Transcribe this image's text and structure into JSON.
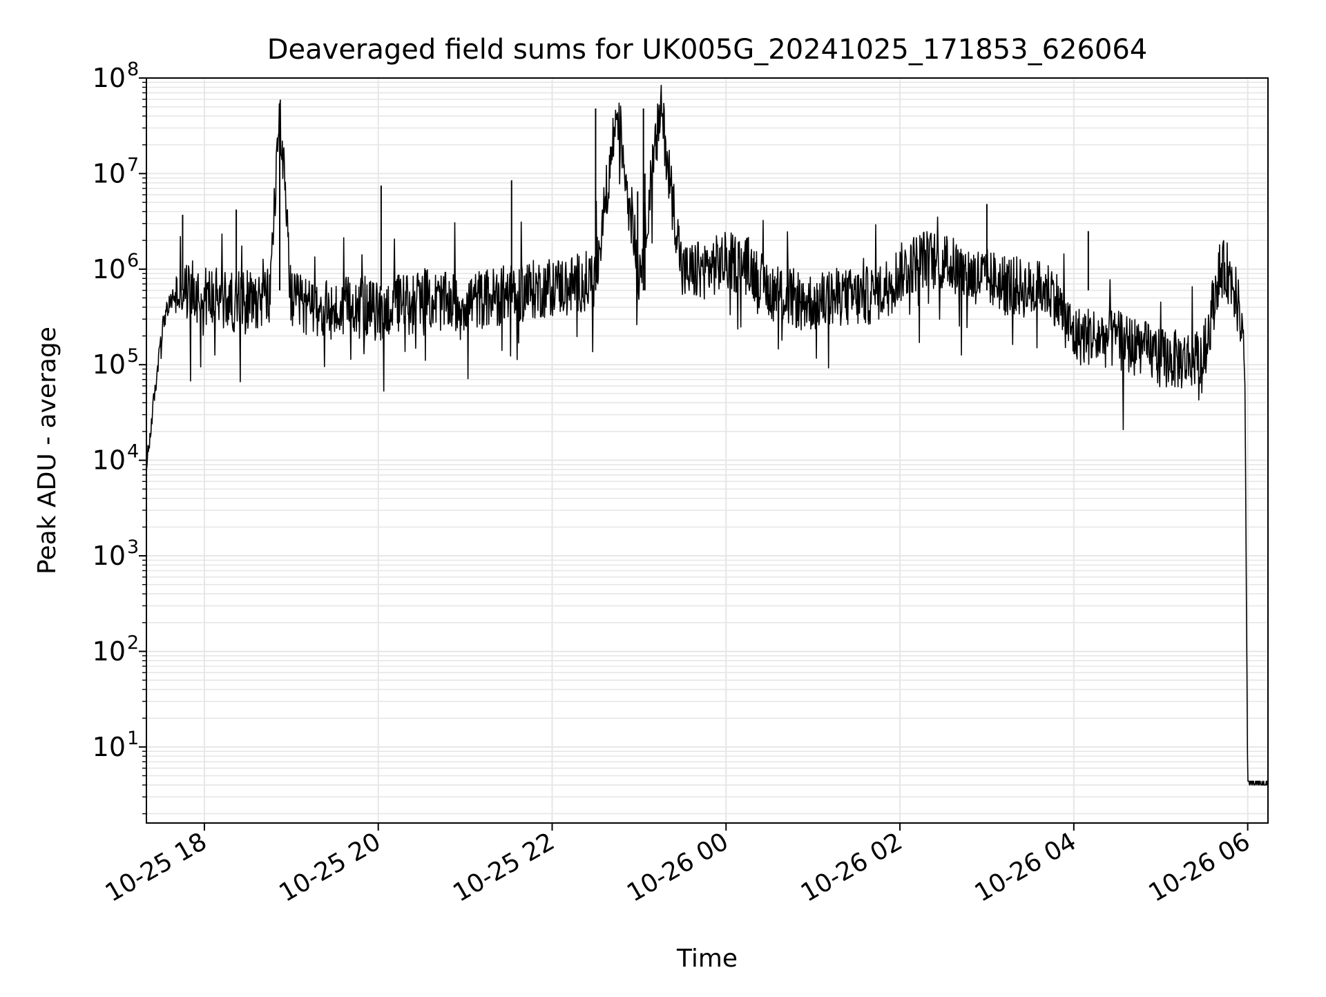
{
  "chart_data": {
    "type": "line",
    "title": "Deaveraged field sums for UK005G_20241025_171853_626064",
    "xlabel": "Time",
    "ylabel": "Peak ADU - average",
    "yscale": "log",
    "xlim": [
      "2024-10-25 17:20",
      "2024-10-26 06:14"
    ],
    "ylim": [
      1.6,
      100000000
    ],
    "grid": true,
    "legend": "none",
    "line_color": "#000000",
    "grid_color": "#e6e6e6",
    "x_ticks": [
      "10-25 18",
      "10-25 20",
      "10-25 22",
      "10-26 00",
      "10-26 02",
      "10-26 04",
      "10-26 06"
    ],
    "y_ticks": [
      {
        "base": "10",
        "exp": "1",
        "value": 10
      },
      {
        "base": "10",
        "exp": "2",
        "value": 100
      },
      {
        "base": "10",
        "exp": "3",
        "value": 1000
      },
      {
        "base": "10",
        "exp": "4",
        "value": 10000
      },
      {
        "base": "10",
        "exp": "5",
        "value": 100000
      },
      {
        "base": "10",
        "exp": "6",
        "value": 1000000
      },
      {
        "base": "10",
        "exp": "7",
        "value": 10000000
      },
      {
        "base": "10",
        "exp": "8",
        "value": 100000000
      }
    ],
    "series": [
      {
        "x": [
          "2024-10-25 17:20",
          "2024-10-25 17:24",
          "2024-10-25 17:28",
          "2024-10-25 17:32",
          "2024-10-25 17:38",
          "2024-10-25 17:45",
          "2024-10-25 17:55",
          "2024-10-25 18:10",
          "2024-10-25 18:20",
          "2024-10-25 18:30",
          "2024-10-25 18:45",
          "2024-10-25 18:52",
          "2024-10-25 19:00",
          "2024-10-25 19:15",
          "2024-10-25 19:30",
          "2024-10-25 19:45",
          "2024-10-25 20:00",
          "2024-10-25 20:15",
          "2024-10-25 20:30",
          "2024-10-25 20:45",
          "2024-10-25 21:00",
          "2024-10-25 21:15",
          "2024-10-25 21:30",
          "2024-10-25 21:45",
          "2024-10-25 22:00",
          "2024-10-25 22:15",
          "2024-10-25 22:30",
          "2024-10-25 22:45",
          "2024-10-25 23:00",
          "2024-10-25 23:15",
          "2024-10-25 23:30",
          "2024-10-25 23:45",
          "2024-10-26 00:00",
          "2024-10-26 00:15",
          "2024-10-26 00:30",
          "2024-10-26 00:45",
          "2024-10-26 01:00",
          "2024-10-26 01:15",
          "2024-10-26 01:30",
          "2024-10-26 01:45",
          "2024-10-26 02:00",
          "2024-10-26 02:15",
          "2024-10-26 02:30",
          "2024-10-26 02:45",
          "2024-10-26 03:00",
          "2024-10-26 03:15",
          "2024-10-26 03:30",
          "2024-10-26 03:45",
          "2024-10-26 04:00",
          "2024-10-26 04:15",
          "2024-10-26 04:30",
          "2024-10-26 04:45",
          "2024-10-26 05:00",
          "2024-10-26 05:15",
          "2024-10-26 05:30",
          "2024-10-26 05:40",
          "2024-10-26 05:45",
          "2024-10-26 05:50",
          "2024-10-26 05:55",
          "2024-10-26 05:58",
          "2024-10-26 06:00",
          "2024-10-26 06:05",
          "2024-10-26 06:14"
        ],
        "y": [
          8000,
          30000,
          100000,
          300000,
          500000,
          600000,
          550000,
          500000,
          450000,
          500000,
          500000,
          50000000,
          450000,
          400000,
          350000,
          450000,
          350000,
          450000,
          500000,
          450000,
          450000,
          500000,
          550000,
          600000,
          650000,
          700000,
          800000,
          48000000,
          850000,
          48000000,
          900000,
          1000000,
          1200000,
          1100000,
          600000,
          500000,
          450000,
          500000,
          500000,
          550000,
          900000,
          1300000,
          1200000,
          900000,
          800000,
          700000,
          600000,
          600000,
          200000,
          200000,
          180000,
          150000,
          120000,
          110000,
          130000,
          900000,
          1000000,
          700000,
          300000,
          100000,
          4,
          4,
          4
        ]
      }
    ],
    "spikes": [
      {
        "x": "2024-10-25 18:52",
        "y": 50000000
      },
      {
        "x": "2024-10-25 22:30",
        "y": 48000000
      },
      {
        "x": "2024-10-25 23:03",
        "y": 48000000
      },
      {
        "x": "2024-10-25 23:04",
        "y": 10000000
      },
      {
        "x": "2024-10-25 20:02",
        "y": 7500000
      },
      {
        "x": "2024-10-25 21:32",
        "y": 8500000
      },
      {
        "x": "2024-10-25 18:22",
        "y": 4200000
      },
      {
        "x": "2024-10-25 17:45",
        "y": 3700000
      },
      {
        "x": "2024-10-25 22:59",
        "y": 6500000
      },
      {
        "x": "2024-10-26 03:00",
        "y": 4800000
      },
      {
        "x": "2024-10-26 04:10",
        "y": 2500000
      }
    ]
  }
}
